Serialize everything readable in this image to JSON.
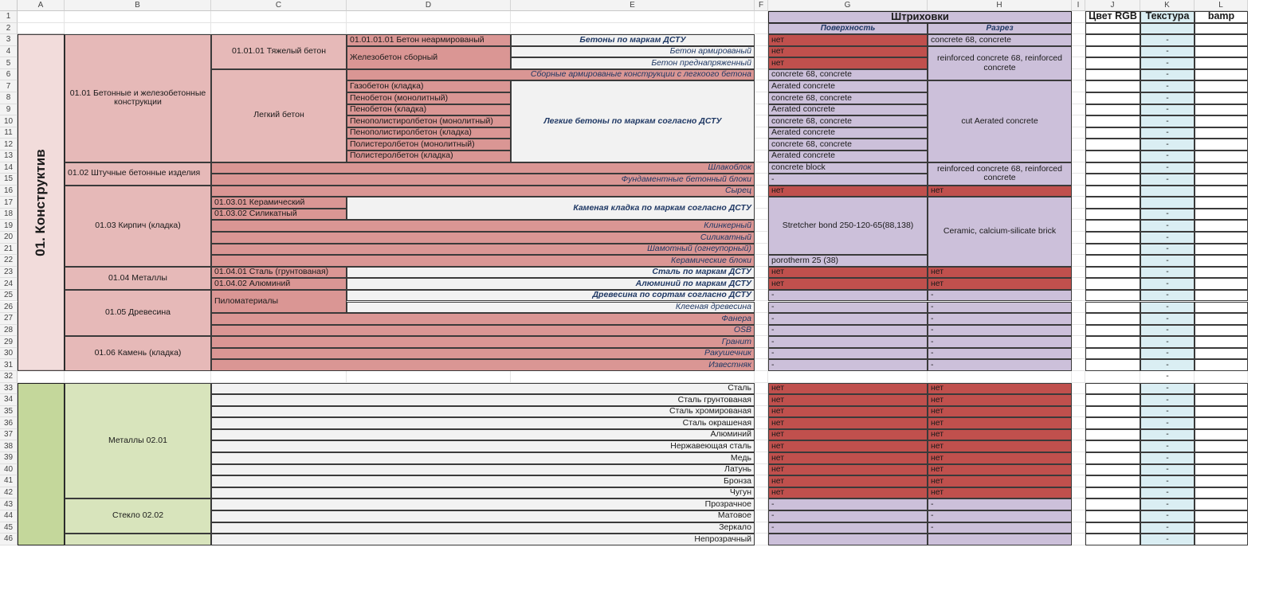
{
  "colors": {
    "pink_light": "#f2dcdb",
    "pink_mid": "#e6b9b8",
    "pink_dark": "#da9694",
    "grey": "#f2f2f2",
    "red": "#c0504d",
    "lavender": "#ccc0da",
    "lightblue": "#daeef3",
    "green_dark": "#c4d79b",
    "green_light": "#d8e4bc"
  },
  "columns": [
    "A",
    "B",
    "C",
    "D",
    "E",
    "F",
    "G",
    "H",
    "I",
    "J",
    "K",
    "L"
  ],
  "rows": [
    "1",
    "2",
    "3",
    "4",
    "5",
    "6",
    "7",
    "8",
    "9",
    "10",
    "11",
    "12",
    "13",
    "14",
    "15",
    "16",
    "17",
    "18",
    "19",
    "20",
    "21",
    "22",
    "23",
    "24",
    "25",
    "26",
    "27",
    "28",
    "29",
    "30",
    "31",
    "32",
    "33",
    "34",
    "35",
    "36",
    "37",
    "38",
    "39",
    "40",
    "41",
    "42",
    "43",
    "44",
    "45",
    "46"
  ],
  "headers": {
    "hatch": "Штриховки",
    "surface": "Поверхность",
    "section": "Разрез",
    "rgb": "Цвет RGB",
    "texture": "Текстура",
    "bamp": "bamp"
  },
  "section1": {
    "title": "01. Конструктив"
  },
  "groups": {
    "b_0101": "01.01 Бетонные и железобетонные конструкции",
    "b_0102": "01.02 Штучные бетонные изделия",
    "b_0103": "01.03 Кирпич (кладка)",
    "b_0104": "01.04 Металлы",
    "b_0105": "01.05 Древесина",
    "b_0106": "01.06 Камень (кладка)",
    "c_010101": "01.01.01 Тяжелый бетон",
    "c_light": "Легкий бетон",
    "c_010301": "01.03.01 Керамический",
    "c_010302": "01.03.02 Силикатный",
    "c_010401": "01.04.01 Сталь (грунтованая)",
    "c_010402": "01.04.02 Алюминий",
    "c_lumber": "Пиломатериалы",
    "d_01010101": "01.01.01.01 Бетон неармированый",
    "d_precast": "Железобетон сборный",
    "e_dstu": "Бетоны по маркам ДСТУ",
    "e_reinf": "Бетон армированый",
    "e_prestress": "Бетон преднапряженный",
    "e_light_precast": "Сборные армированые конструкции с легкоого бетона",
    "e_light_dstu": "Легкие бетоны по маркам согласно ДСТУ",
    "e_masonry_dstu": "Каменая кладка по маркам согласно ДСТУ",
    "e_steel_dstu": "Сталь по маркам ДСТУ",
    "e_alu_dstu": "Алюминий по маркам ДСТУ",
    "e_wood_dstu": "Древесина по сортам согласно ДСТУ",
    "e_glulam": "Клееная древесина",
    "d_light": [
      "Газобетон (кладка)",
      "Пенобетон (монолитный)",
      "Пенобетон (кладка)",
      "Пенополистиролбетон (монолитный)",
      "Пенополистиролбетон (кладка)",
      "Полистеролбетон (монолитный)",
      "Полистеролбетон (кладка)"
    ],
    "right_labels": {
      "r14": "Шлакоблок",
      "r15": "Фундаментные бетонный блоки",
      "r16": "Сырец",
      "r19": "Клинкерный",
      "r20": "Силикатный",
      "r21": "Шамотный (огнеупорный)",
      "r22": "Керамические блоки",
      "r27": "Фанера",
      "r28": "OSB",
      "r29": "Гранит",
      "r30": "Ракушечник",
      "r31": "Известняк"
    }
  },
  "g_values": {
    "r3": "нет",
    "r4": "нет",
    "r5": "нет",
    "r6": "concrete 68, concrete",
    "r7": "Aerated concrete",
    "r8": "concrete 68, concrete",
    "r9": "Aerated concrete",
    "r10": "concrete 68, concrete",
    "r11": "Aerated concrete",
    "r12": "concrete 68, concrete",
    "r13": "Aerated concrete",
    "r14": "concrete block",
    "r15": "-",
    "r16": "нет",
    "r17_21": "Stretcher bond 250-120-65(88,138)",
    "r22": "porotherm 25 (38)",
    "r23": "нет",
    "r24": "нет",
    "r25": "-",
    "r26": "-",
    "r27": "-",
    "r28": "-",
    "r29": "-",
    "r30": "-",
    "r31": "-"
  },
  "h_values": {
    "r3": "concrete 68, concrete",
    "r4_6": "reinforced concrete 68, reinforced concrete",
    "r7_13": "cut Aerated concrete",
    "r14_15": "reinforced concrete 68, reinforced concrete",
    "r16": "нет",
    "r17_22": "Ceramic, calcium-silicate brick",
    "r23": "нет",
    "r24": "нет",
    "r25": "-",
    "r26": "-",
    "r27": "-",
    "r28": "-",
    "r29": "-",
    "r30": "-",
    "r31": "-"
  },
  "dash": "-",
  "section2": {
    "group_metals": "Металлы 02.01",
    "group_glass": "Стекло 02.02",
    "metals": [
      "Сталь",
      "Сталь грунтованая",
      "Сталь хромированая",
      "Сталь окрашеная",
      "Алюминий",
      "Нержавеющая сталь",
      "Медь",
      "Латунь",
      "Бронза",
      "Чугун"
    ],
    "glass": [
      "Прозрачное",
      "Матовое",
      "Зеркало"
    ],
    "metals_g": "нет",
    "metals_h": "нет",
    "glass_g": "-",
    "glass_h": "-",
    "row46_label": "Непрозрачный"
  }
}
